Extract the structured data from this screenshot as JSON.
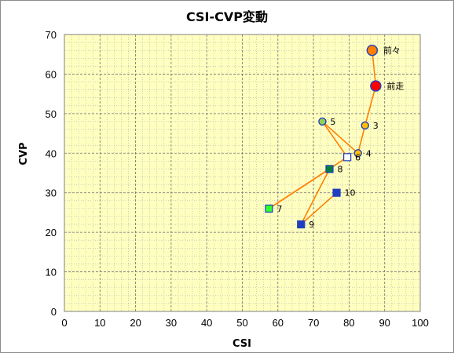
{
  "chart_data": {
    "type": "scatter",
    "title": "CSI-CVP変動",
    "xlabel": "CSI",
    "ylabel": "CVP",
    "xlim": [
      0,
      100
    ],
    "ylim": [
      0,
      70
    ],
    "xticks": [
      0,
      10,
      20,
      30,
      40,
      50,
      60,
      70,
      80,
      90,
      100
    ],
    "yticks": [
      0,
      10,
      20,
      30,
      40,
      50,
      60,
      70
    ],
    "grid": true,
    "plot_background": "#ffffc0",
    "line_color": "#ff8000",
    "points": [
      {
        "label": "前々",
        "x": 86.5,
        "y": 66,
        "marker": "circle",
        "fill": "#ff8000",
        "stroke": "#1f3fbf",
        "size": "large"
      },
      {
        "label": "前走",
        "x": 87.5,
        "y": 57,
        "marker": "circle",
        "fill": "#ff0000",
        "stroke": "#1f3fbf",
        "size": "large"
      },
      {
        "label": "3",
        "x": 84.5,
        "y": 47,
        "marker": "circle",
        "fill": "#ffc000",
        "stroke": "#1f3fbf",
        "size": "small"
      },
      {
        "label": "4",
        "x": 82.5,
        "y": 40,
        "marker": "circle",
        "fill": "#ffc000",
        "stroke": "#1f3fbf",
        "size": "small"
      },
      {
        "label": "5",
        "x": 72.5,
        "y": 48,
        "marker": "circle",
        "fill": "#92d050",
        "stroke": "#1f3fbf",
        "size": "small"
      },
      {
        "label": "6",
        "x": 79.5,
        "y": 39,
        "marker": "square",
        "fill": "#ffffff",
        "stroke": "#1f3fbf",
        "size": "small"
      },
      {
        "label": "7",
        "x": 57.5,
        "y": 26,
        "marker": "square",
        "fill": "#33ff33",
        "stroke": "#1f3fbf",
        "size": "small"
      },
      {
        "label": "8",
        "x": 74.5,
        "y": 36,
        "marker": "square",
        "fill": "#007f3f",
        "stroke": "#1f3fbf",
        "size": "small"
      },
      {
        "label": "9",
        "x": 66.5,
        "y": 22,
        "marker": "square",
        "fill": "#1f3fbf",
        "stroke": "#1f3fbf",
        "size": "small"
      },
      {
        "label": "10",
        "x": 76.5,
        "y": 30,
        "marker": "square",
        "fill": "#1f3fbf",
        "stroke": "#1f3fbf",
        "size": "small"
      }
    ]
  }
}
